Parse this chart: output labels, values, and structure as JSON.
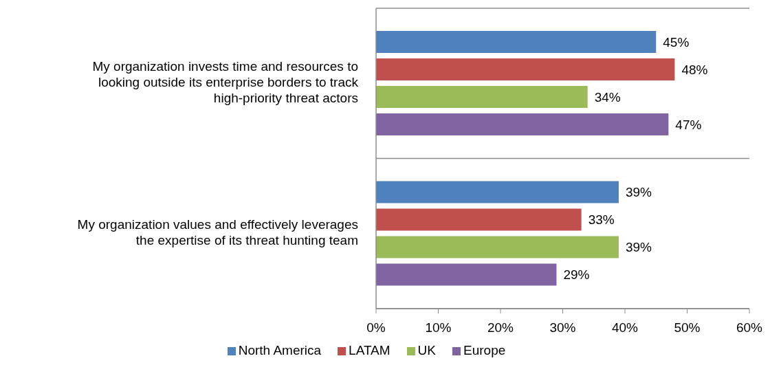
{
  "chart_data": {
    "type": "bar",
    "orientation": "horizontal",
    "categories": [
      "My organization invests time and resources to looking outside its enterprise borders to track high-priority threat actors",
      "My organization values and effectively leverages the expertise of its threat hunting team"
    ],
    "series": [
      {
        "name": "North America",
        "color": "#4f81bd",
        "values": [
          45,
          39
        ],
        "value_labels": [
          "45%",
          "39%"
        ]
      },
      {
        "name": "LATAM",
        "color": "#c0504d",
        "values": [
          48,
          33
        ],
        "value_labels": [
          "48%",
          "33%"
        ]
      },
      {
        "name": "UK",
        "color": "#9bbb59",
        "values": [
          34,
          39
        ],
        "value_labels": [
          "34%",
          "39%"
        ]
      },
      {
        "name": "Europe",
        "color": "#8064a2",
        "values": [
          47,
          29
        ],
        "value_labels": [
          "47%",
          "29%"
        ]
      }
    ],
    "xlim": [
      0,
      60
    ],
    "xticks": [
      {
        "value": 0,
        "label": "0%"
      },
      {
        "value": 10,
        "label": "10%"
      },
      {
        "value": 20,
        "label": "20%"
      },
      {
        "value": 30,
        "label": "30%"
      },
      {
        "value": 40,
        "label": "40%"
      },
      {
        "value": 50,
        "label": "50%"
      },
      {
        "value": 60,
        "label": "60%"
      }
    ],
    "grid": "y",
    "legend": "bottom"
  }
}
